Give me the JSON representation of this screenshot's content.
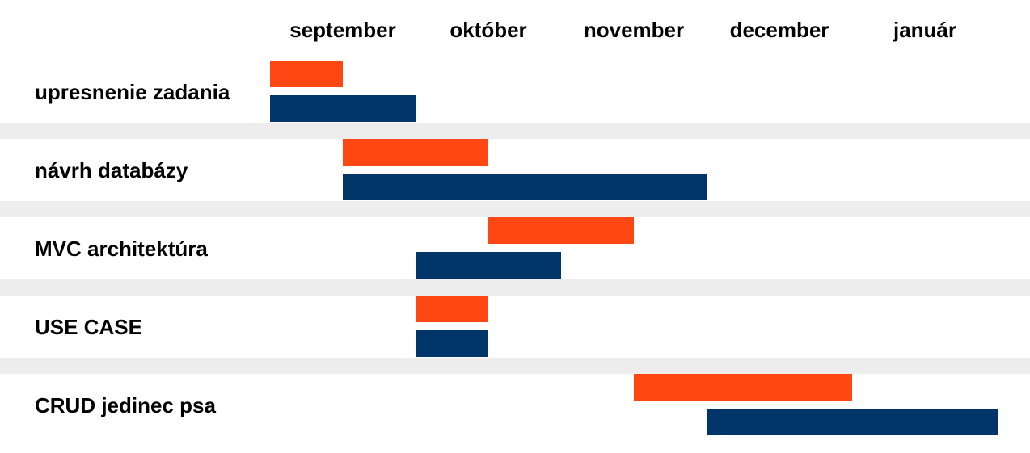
{
  "chart_data": {
    "type": "gantt",
    "title": "",
    "x_unit": "month",
    "months": [
      "september",
      "október",
      "november",
      "december",
      "január"
    ],
    "x_range": [
      0,
      5
    ],
    "colors": {
      "series_1": "#FF4713",
      "series_2": "#00356A",
      "separator": "#EDEDED",
      "background": "#FFFFFF"
    },
    "tasks": [
      {
        "label": "upresnenie zadania",
        "bars": [
          {
            "start": 0.0,
            "end": 0.5
          },
          {
            "start": 0.0,
            "end": 1.0
          }
        ]
      },
      {
        "label": "návrh databázy",
        "bars": [
          {
            "start": 0.5,
            "end": 1.5
          },
          {
            "start": 0.5,
            "end": 3.0
          }
        ]
      },
      {
        "label": "MVC architektúra",
        "bars": [
          {
            "start": 1.5,
            "end": 2.5
          },
          {
            "start": 1.0,
            "end": 2.0
          }
        ]
      },
      {
        "label": "USE CASE",
        "bars": [
          {
            "start": 1.0,
            "end": 1.5
          },
          {
            "start": 1.0,
            "end": 1.5
          }
        ]
      },
      {
        "label": "CRUD jedinec psa",
        "bars": [
          {
            "start": 2.5,
            "end": 4.0
          },
          {
            "start": 3.0,
            "end": 5.0
          }
        ]
      }
    ]
  }
}
